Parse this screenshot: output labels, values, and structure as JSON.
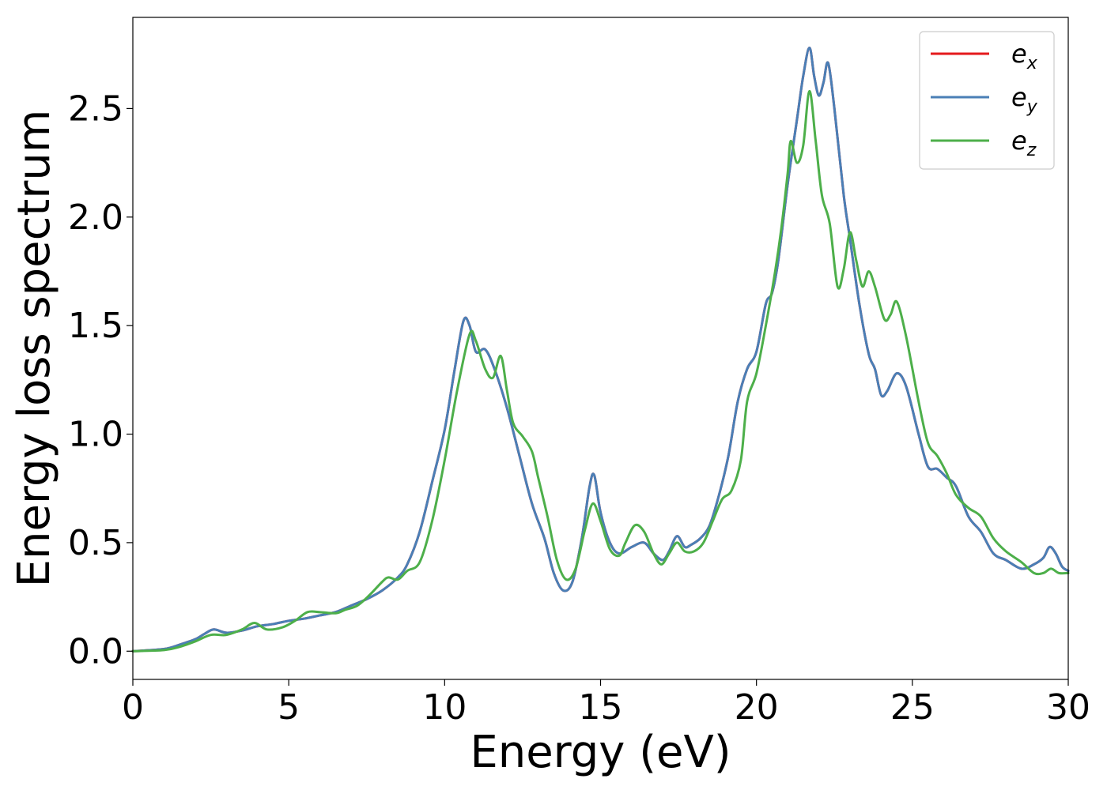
{
  "chart_data": {
    "type": "line",
    "xlabel": "Energy (eV)",
    "ylabel": "Energy loss spectrum",
    "xlim": [
      0,
      30
    ],
    "ylim": [
      -0.13,
      2.92
    ],
    "xticks": [
      0,
      5,
      10,
      15,
      20,
      25,
      30
    ],
    "yticks": [
      0.0,
      0.5,
      1.0,
      1.5,
      2.0,
      2.5
    ],
    "xtick_labels": [
      "0",
      "5",
      "10",
      "15",
      "20",
      "25",
      "30"
    ],
    "ytick_labels": [
      "0.0",
      "0.5",
      "1.0",
      "1.5",
      "2.0",
      "2.5"
    ],
    "grid": false,
    "legend_position": "top-right",
    "series": [
      {
        "name": "e_x",
        "legend_base": "e",
        "legend_sub": "x",
        "color": "#e41a1c",
        "x": [
          0,
          1,
          1.5,
          2,
          2.3,
          2.6,
          3.0,
          3.5,
          4,
          4.5,
          5,
          5.5,
          6,
          6.5,
          7,
          7.5,
          8,
          8.5,
          8.8,
          9.2,
          9.6,
          10.0,
          10.3,
          10.6,
          10.8,
          11.0,
          11.3,
          11.6,
          12.0,
          12.4,
          12.8,
          13.2,
          13.5,
          13.8,
          14.1,
          14.4,
          14.65,
          14.8,
          15.0,
          15.3,
          15.6,
          16.0,
          16.4,
          16.7,
          17.0,
          17.2,
          17.45,
          17.7,
          17.9,
          18.2,
          18.5,
          18.8,
          19.1,
          19.4,
          19.7,
          20.0,
          20.3,
          20.5,
          20.7,
          21.0,
          21.3,
          21.5,
          21.7,
          21.85,
          22.0,
          22.15,
          22.3,
          22.5,
          22.8,
          23.0,
          23.3,
          23.6,
          23.8,
          24.0,
          24.2,
          24.5,
          24.8,
          25.2,
          25.5,
          25.8,
          26.1,
          26.4,
          26.8,
          27.2,
          27.6,
          28.0,
          28.5,
          28.9,
          29.2,
          29.4,
          29.6,
          29.8,
          30
        ],
        "values": [
          0.0,
          0.01,
          0.03,
          0.055,
          0.08,
          0.1,
          0.085,
          0.095,
          0.115,
          0.125,
          0.14,
          0.15,
          0.165,
          0.18,
          0.21,
          0.24,
          0.28,
          0.34,
          0.4,
          0.55,
          0.78,
          1.02,
          1.28,
          1.52,
          1.5,
          1.38,
          1.39,
          1.3,
          1.12,
          0.9,
          0.68,
          0.52,
          0.36,
          0.28,
          0.32,
          0.52,
          0.76,
          0.81,
          0.64,
          0.5,
          0.45,
          0.48,
          0.5,
          0.45,
          0.42,
          0.46,
          0.53,
          0.48,
          0.49,
          0.52,
          0.58,
          0.72,
          0.9,
          1.15,
          1.3,
          1.38,
          1.6,
          1.65,
          1.8,
          2.15,
          2.45,
          2.65,
          2.78,
          2.65,
          2.56,
          2.62,
          2.71,
          2.5,
          2.1,
          1.9,
          1.6,
          1.37,
          1.3,
          1.18,
          1.2,
          1.28,
          1.22,
          1.0,
          0.85,
          0.84,
          0.8,
          0.76,
          0.62,
          0.55,
          0.45,
          0.42,
          0.38,
          0.4,
          0.43,
          0.48,
          0.45,
          0.39,
          0.37
        ]
      },
      {
        "name": "e_y",
        "legend_base": "e",
        "legend_sub": "y",
        "color": "#4a7fb6",
        "x": [
          0,
          1,
          1.5,
          2,
          2.3,
          2.6,
          3.0,
          3.5,
          4,
          4.5,
          5,
          5.5,
          6,
          6.5,
          7,
          7.5,
          8,
          8.5,
          8.8,
          9.2,
          9.6,
          10.0,
          10.3,
          10.6,
          10.8,
          11.0,
          11.3,
          11.6,
          12.0,
          12.4,
          12.8,
          13.2,
          13.5,
          13.8,
          14.1,
          14.4,
          14.65,
          14.8,
          15.0,
          15.3,
          15.6,
          16.0,
          16.4,
          16.7,
          17.0,
          17.2,
          17.45,
          17.7,
          17.9,
          18.2,
          18.5,
          18.8,
          19.1,
          19.4,
          19.7,
          20.0,
          20.3,
          20.5,
          20.7,
          21.0,
          21.3,
          21.5,
          21.7,
          21.85,
          22.0,
          22.15,
          22.3,
          22.5,
          22.8,
          23.0,
          23.3,
          23.6,
          23.8,
          24.0,
          24.2,
          24.5,
          24.8,
          25.2,
          25.5,
          25.8,
          26.1,
          26.4,
          26.8,
          27.2,
          27.6,
          28.0,
          28.5,
          28.9,
          29.2,
          29.4,
          29.6,
          29.8,
          30
        ],
        "values": [
          0.0,
          0.01,
          0.03,
          0.055,
          0.08,
          0.1,
          0.085,
          0.095,
          0.115,
          0.125,
          0.14,
          0.15,
          0.165,
          0.18,
          0.21,
          0.24,
          0.28,
          0.34,
          0.4,
          0.55,
          0.78,
          1.02,
          1.28,
          1.52,
          1.5,
          1.38,
          1.39,
          1.3,
          1.12,
          0.9,
          0.68,
          0.52,
          0.36,
          0.28,
          0.32,
          0.52,
          0.76,
          0.81,
          0.64,
          0.5,
          0.45,
          0.48,
          0.5,
          0.45,
          0.42,
          0.46,
          0.53,
          0.48,
          0.49,
          0.52,
          0.58,
          0.72,
          0.9,
          1.15,
          1.3,
          1.38,
          1.6,
          1.65,
          1.8,
          2.15,
          2.45,
          2.65,
          2.78,
          2.65,
          2.56,
          2.62,
          2.71,
          2.5,
          2.1,
          1.9,
          1.6,
          1.37,
          1.3,
          1.18,
          1.2,
          1.28,
          1.22,
          1.0,
          0.85,
          0.84,
          0.8,
          0.76,
          0.62,
          0.55,
          0.45,
          0.42,
          0.38,
          0.4,
          0.43,
          0.48,
          0.45,
          0.39,
          0.37
        ]
      },
      {
        "name": "e_z",
        "legend_base": "e",
        "legend_sub": "z",
        "color": "#4daf4a",
        "x": [
          0,
          1,
          1.5,
          2,
          2.5,
          3.0,
          3.5,
          3.9,
          4.3,
          4.8,
          5.2,
          5.6,
          6,
          6.5,
          6.8,
          7.2,
          7.6,
          8.0,
          8.2,
          8.5,
          8.8,
          9.2,
          9.6,
          10.0,
          10.4,
          10.8,
          11.0,
          11.3,
          11.55,
          11.8,
          12.0,
          12.2,
          12.5,
          12.8,
          13.0,
          13.3,
          13.6,
          13.9,
          14.2,
          14.5,
          14.75,
          15.0,
          15.3,
          15.6,
          15.8,
          16.1,
          16.4,
          16.7,
          16.95,
          17.2,
          17.45,
          17.7,
          18.0,
          18.3,
          18.6,
          18.9,
          19.2,
          19.5,
          19.7,
          20.0,
          20.3,
          20.6,
          20.8,
          21.0,
          21.1,
          21.3,
          21.5,
          21.7,
          21.9,
          22.1,
          22.35,
          22.6,
          22.8,
          23.0,
          23.2,
          23.4,
          23.6,
          23.8,
          24.1,
          24.3,
          24.5,
          24.8,
          25.2,
          25.5,
          25.8,
          26.1,
          26.4,
          26.8,
          27.2,
          27.6,
          28.0,
          28.5,
          28.9,
          29.2,
          29.45,
          29.7,
          30
        ],
        "values": [
          0.0,
          0.005,
          0.02,
          0.045,
          0.075,
          0.075,
          0.1,
          0.13,
          0.1,
          0.11,
          0.14,
          0.18,
          0.18,
          0.175,
          0.19,
          0.21,
          0.26,
          0.32,
          0.34,
          0.33,
          0.37,
          0.41,
          0.6,
          0.88,
          1.2,
          1.46,
          1.43,
          1.3,
          1.26,
          1.36,
          1.2,
          1.05,
          0.99,
          0.92,
          0.8,
          0.62,
          0.42,
          0.33,
          0.38,
          0.56,
          0.68,
          0.6,
          0.47,
          0.44,
          0.5,
          0.58,
          0.55,
          0.45,
          0.4,
          0.45,
          0.5,
          0.46,
          0.46,
          0.5,
          0.6,
          0.7,
          0.74,
          0.88,
          1.15,
          1.28,
          1.5,
          1.75,
          1.95,
          2.2,
          2.35,
          2.25,
          2.33,
          2.58,
          2.35,
          2.1,
          1.97,
          1.68,
          1.76,
          1.93,
          1.8,
          1.68,
          1.75,
          1.68,
          1.53,
          1.55,
          1.61,
          1.45,
          1.15,
          0.96,
          0.9,
          0.82,
          0.72,
          0.66,
          0.62,
          0.52,
          0.46,
          0.41,
          0.36,
          0.36,
          0.38,
          0.36,
          0.36
        ]
      }
    ]
  }
}
